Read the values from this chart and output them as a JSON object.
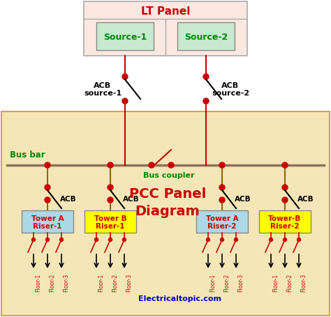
{
  "title": "PCC Panel\nDiagram",
  "lt_panel_label": "LT Panel",
  "source_labels": [
    "Source-1",
    "Source-2"
  ],
  "bus_bar_label": "Bus bar",
  "bus_coupler_label": "Bus coupler",
  "acb_source_labels": [
    "ACB\nsource-1",
    "ACB\nsource-2"
  ],
  "acb_label": "ACB",
  "tower_labels": [
    [
      "Tower A",
      "Riser-1"
    ],
    [
      "Tower B",
      "Riser-1"
    ],
    [
      "Tower A",
      "Riser-2"
    ],
    [
      "Tower-B",
      "Riser-2"
    ]
  ],
  "floor_labels": [
    "Floor-1",
    "Floor-2",
    "Floor-3"
  ],
  "website": "Electricaltopic.com",
  "bg_top": "#ffffff",
  "bg_pcc": "#f5e6b8",
  "lt_panel_bg": "#fce8e0",
  "lt_panel_border": "#aaaaaa",
  "source_bg": "#c8e8d0",
  "source_border": "#888888",
  "bus_bar_color": "#8B7355",
  "wire_color": "#8B6914",
  "acb_wire_color": "#cc0000",
  "acb_dot_color": "#cc0000",
  "tower_a_bg": "#add8e6",
  "tower_b_bg": "#ffff00",
  "tower_text_color": "#cc0000",
  "floor_text_color": "#cc0000",
  "bus_bar_label_color": "#008800",
  "bus_coupler_label_color": "#008800",
  "lt_panel_title_color": "#cc0000",
  "pcc_title_color": "#cc0000",
  "website_color": "#0000cc",
  "source_text_color": "#008800",
  "acb_color": "#000000"
}
